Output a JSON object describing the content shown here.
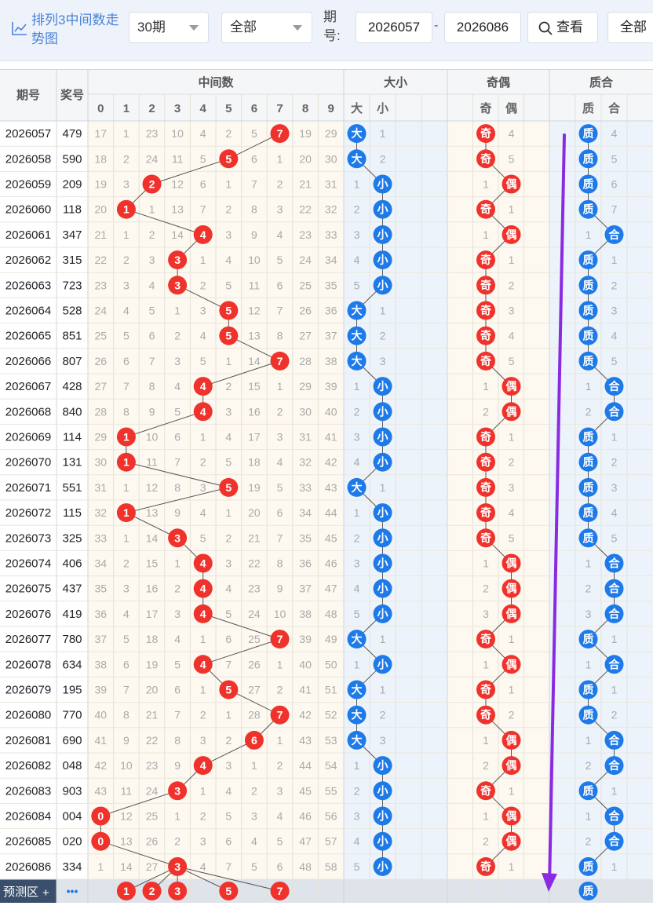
{
  "topbar": {
    "title": "排列3中间数走势图",
    "period_select": "30期",
    "filter_select": "全部",
    "issue_label": "期号:",
    "from_issue": "2026057",
    "dash": "-",
    "to_issue": "2026086",
    "view_button": "查看",
    "all_button": "全部"
  },
  "headers": {
    "issue": "期号",
    "prize": "奖号",
    "middle_group": "中间数",
    "size_group": "大小",
    "parity_group": "奇偶",
    "prime_group": "质合",
    "digits": [
      "0",
      "1",
      "2",
      "3",
      "4",
      "5",
      "6",
      "7",
      "8",
      "9"
    ],
    "size_labels": [
      "大",
      "小"
    ],
    "parity_labels": [
      "奇",
      "偶"
    ],
    "prime_labels": [
      "质",
      "合"
    ]
  },
  "rows": [
    {
      "issue": "2026057",
      "prize": "479",
      "mid": 7,
      "omit": [
        17,
        1,
        23,
        10,
        4,
        2,
        5,
        null,
        19,
        29
      ],
      "size": "大",
      "size_omit": 1,
      "parity": "奇",
      "parity_omit": 4,
      "prime": "质",
      "prime_omit": 4
    },
    {
      "issue": "2026058",
      "prize": "590",
      "mid": 5,
      "omit": [
        18,
        2,
        24,
        11,
        5,
        null,
        6,
        1,
        20,
        30
      ],
      "size": "大",
      "size_omit": 2,
      "parity": "奇",
      "parity_omit": 5,
      "prime": "质",
      "prime_omit": 5
    },
    {
      "issue": "2026059",
      "prize": "209",
      "mid": 2,
      "omit": [
        19,
        3,
        null,
        12,
        6,
        1,
        7,
        2,
        21,
        31
      ],
      "size": "小",
      "size_omit": 1,
      "parity": "偶",
      "parity_omit": 1,
      "prime": "质",
      "prime_omit": 6
    },
    {
      "issue": "2026060",
      "prize": "118",
      "mid": 1,
      "omit": [
        20,
        null,
        1,
        13,
        7,
        2,
        8,
        3,
        22,
        32
      ],
      "size": "小",
      "size_omit": 2,
      "parity": "奇",
      "parity_omit": 1,
      "prime": "质",
      "prime_omit": 7
    },
    {
      "issue": "2026061",
      "prize": "347",
      "mid": 4,
      "omit": [
        21,
        1,
        2,
        14,
        null,
        3,
        9,
        4,
        23,
        33
      ],
      "size": "小",
      "size_omit": 3,
      "parity": "偶",
      "parity_omit": 1,
      "prime": "合",
      "prime_omit": 1
    },
    {
      "issue": "2026062",
      "prize": "315",
      "mid": 3,
      "omit": [
        22,
        2,
        3,
        null,
        1,
        4,
        10,
        5,
        24,
        34
      ],
      "size": "小",
      "size_omit": 4,
      "parity": "奇",
      "parity_omit": 1,
      "prime": "质",
      "prime_omit": 1
    },
    {
      "issue": "2026063",
      "prize": "723",
      "mid": 3,
      "omit": [
        23,
        3,
        4,
        null,
        2,
        5,
        11,
        6,
        25,
        35
      ],
      "size": "小",
      "size_omit": 5,
      "parity": "奇",
      "parity_omit": 2,
      "prime": "质",
      "prime_omit": 2
    },
    {
      "issue": "2026064",
      "prize": "528",
      "mid": 5,
      "omit": [
        24,
        4,
        5,
        1,
        3,
        null,
        12,
        7,
        26,
        36
      ],
      "size": "大",
      "size_omit": 1,
      "parity": "奇",
      "parity_omit": 3,
      "prime": "质",
      "prime_omit": 3
    },
    {
      "issue": "2026065",
      "prize": "851",
      "mid": 5,
      "omit": [
        25,
        5,
        6,
        2,
        4,
        null,
        13,
        8,
        27,
        37
      ],
      "size": "大",
      "size_omit": 2,
      "parity": "奇",
      "parity_omit": 4,
      "prime": "质",
      "prime_omit": 4
    },
    {
      "issue": "2026066",
      "prize": "807",
      "mid": 7,
      "omit": [
        26,
        6,
        7,
        3,
        5,
        1,
        14,
        null,
        28,
        38
      ],
      "size": "大",
      "size_omit": 3,
      "parity": "奇",
      "parity_omit": 5,
      "prime": "质",
      "prime_omit": 5
    },
    {
      "issue": "2026067",
      "prize": "428",
      "mid": 4,
      "omit": [
        27,
        7,
        8,
        4,
        null,
        2,
        15,
        1,
        29,
        39
      ],
      "size": "小",
      "size_omit": 1,
      "parity": "偶",
      "parity_omit": 1,
      "prime": "合",
      "prime_omit": 1
    },
    {
      "issue": "2026068",
      "prize": "840",
      "mid": 4,
      "omit": [
        28,
        8,
        9,
        5,
        null,
        3,
        16,
        2,
        30,
        40
      ],
      "size": "小",
      "size_omit": 2,
      "parity": "偶",
      "parity_omit": 2,
      "prime": "合",
      "prime_omit": 2
    },
    {
      "issue": "2026069",
      "prize": "114",
      "mid": 1,
      "omit": [
        29,
        null,
        10,
        6,
        1,
        4,
        17,
        3,
        31,
        41
      ],
      "size": "小",
      "size_omit": 3,
      "parity": "奇",
      "parity_omit": 1,
      "prime": "质",
      "prime_omit": 1
    },
    {
      "issue": "2026070",
      "prize": "131",
      "mid": 1,
      "omit": [
        30,
        null,
        11,
        7,
        2,
        5,
        18,
        4,
        32,
        42
      ],
      "size": "小",
      "size_omit": 4,
      "parity": "奇",
      "parity_omit": 2,
      "prime": "质",
      "prime_omit": 2
    },
    {
      "issue": "2026071",
      "prize": "551",
      "mid": 5,
      "omit": [
        31,
        1,
        12,
        8,
        3,
        null,
        19,
        5,
        33,
        43
      ],
      "size": "大",
      "size_omit": 1,
      "parity": "奇",
      "parity_omit": 3,
      "prime": "质",
      "prime_omit": 3
    },
    {
      "issue": "2026072",
      "prize": "115",
      "mid": 1,
      "omit": [
        32,
        null,
        13,
        9,
        4,
        1,
        20,
        6,
        34,
        44
      ],
      "size": "小",
      "size_omit": 1,
      "parity": "奇",
      "parity_omit": 4,
      "prime": "质",
      "prime_omit": 4
    },
    {
      "issue": "2026073",
      "prize": "325",
      "mid": 3,
      "omit": [
        33,
        1,
        14,
        null,
        5,
        2,
        21,
        7,
        35,
        45
      ],
      "size": "小",
      "size_omit": 2,
      "parity": "奇",
      "parity_omit": 5,
      "prime": "质",
      "prime_omit": 5
    },
    {
      "issue": "2026074",
      "prize": "406",
      "mid": 4,
      "omit": [
        34,
        2,
        15,
        1,
        null,
        3,
        22,
        8,
        36,
        46
      ],
      "size": "小",
      "size_omit": 3,
      "parity": "偶",
      "parity_omit": 1,
      "prime": "合",
      "prime_omit": 1
    },
    {
      "issue": "2026075",
      "prize": "437",
      "mid": 4,
      "omit": [
        35,
        3,
        16,
        2,
        null,
        4,
        23,
        9,
        37,
        47
      ],
      "size": "小",
      "size_omit": 4,
      "parity": "偶",
      "parity_omit": 2,
      "prime": "合",
      "prime_omit": 2
    },
    {
      "issue": "2026076",
      "prize": "419",
      "mid": 4,
      "omit": [
        36,
        4,
        17,
        3,
        null,
        5,
        24,
        10,
        38,
        48
      ],
      "size": "小",
      "size_omit": 5,
      "parity": "偶",
      "parity_omit": 3,
      "prime": "合",
      "prime_omit": 3
    },
    {
      "issue": "2026077",
      "prize": "780",
      "mid": 7,
      "omit": [
        37,
        5,
        18,
        4,
        1,
        6,
        25,
        null,
        39,
        49
      ],
      "size": "大",
      "size_omit": 1,
      "parity": "奇",
      "parity_omit": 1,
      "prime": "质",
      "prime_omit": 1
    },
    {
      "issue": "2026078",
      "prize": "634",
      "mid": 4,
      "omit": [
        38,
        6,
        19,
        5,
        null,
        7,
        26,
        1,
        40,
        50
      ],
      "size": "小",
      "size_omit": 1,
      "parity": "偶",
      "parity_omit": 1,
      "prime": "合",
      "prime_omit": 1
    },
    {
      "issue": "2026079",
      "prize": "195",
      "mid": 5,
      "omit": [
        39,
        7,
        20,
        6,
        1,
        null,
        27,
        2,
        41,
        51
      ],
      "size": "大",
      "size_omit": 1,
      "parity": "奇",
      "parity_omit": 1,
      "prime": "质",
      "prime_omit": 1
    },
    {
      "issue": "2026080",
      "prize": "770",
      "mid": 7,
      "omit": [
        40,
        8,
        21,
        7,
        2,
        1,
        28,
        null,
        42,
        52
      ],
      "size": "大",
      "size_omit": 2,
      "parity": "奇",
      "parity_omit": 2,
      "prime": "质",
      "prime_omit": 2
    },
    {
      "issue": "2026081",
      "prize": "690",
      "mid": 6,
      "omit": [
        41,
        9,
        22,
        8,
        3,
        2,
        null,
        1,
        43,
        53
      ],
      "size": "大",
      "size_omit": 3,
      "parity": "偶",
      "parity_omit": 1,
      "prime": "合",
      "prime_omit": 1
    },
    {
      "issue": "2026082",
      "prize": "048",
      "mid": 4,
      "omit": [
        42,
        10,
        23,
        9,
        null,
        3,
        1,
        2,
        44,
        54
      ],
      "size": "小",
      "size_omit": 1,
      "parity": "偶",
      "parity_omit": 2,
      "prime": "合",
      "prime_omit": 2
    },
    {
      "issue": "2026083",
      "prize": "903",
      "mid": 3,
      "omit": [
        43,
        11,
        24,
        null,
        1,
        4,
        2,
        3,
        45,
        55
      ],
      "size": "小",
      "size_omit": 2,
      "parity": "奇",
      "parity_omit": 1,
      "prime": "质",
      "prime_omit": 1
    },
    {
      "issue": "2026084",
      "prize": "004",
      "mid": 0,
      "omit": [
        null,
        12,
        25,
        1,
        2,
        5,
        3,
        4,
        46,
        56
      ],
      "size": "小",
      "size_omit": 3,
      "parity": "偶",
      "parity_omit": 1,
      "prime": "合",
      "prime_omit": 1
    },
    {
      "issue": "2026085",
      "prize": "020",
      "mid": 0,
      "omit": [
        null,
        13,
        26,
        2,
        3,
        6,
        4,
        5,
        47,
        57
      ],
      "size": "小",
      "size_omit": 4,
      "parity": "偶",
      "parity_omit": 2,
      "prime": "合",
      "prime_omit": 2
    },
    {
      "issue": "2026086",
      "prize": "334",
      "mid": 3,
      "omit": [
        1,
        14,
        27,
        null,
        4,
        7,
        5,
        6,
        48,
        58
      ],
      "size": "小",
      "size_omit": 5,
      "parity": "奇",
      "parity_omit": 1,
      "prime": "质",
      "prime_omit": 1
    }
  ],
  "forecast": {
    "label": "预测区",
    "plus": "+",
    "more": "•••",
    "balls": [
      1,
      2,
      3,
      5,
      7
    ],
    "prime_ball": "质"
  },
  "colors": {
    "red_ball": "#f0322c",
    "blue_ball": "#1e7ae8",
    "arrow": "#8a2be2",
    "middle_bg": "#fdf9f0",
    "size_bg": "#edf3fb",
    "parity_bg": "#fdf9f0",
    "prime_bg": "#edf3fb"
  }
}
